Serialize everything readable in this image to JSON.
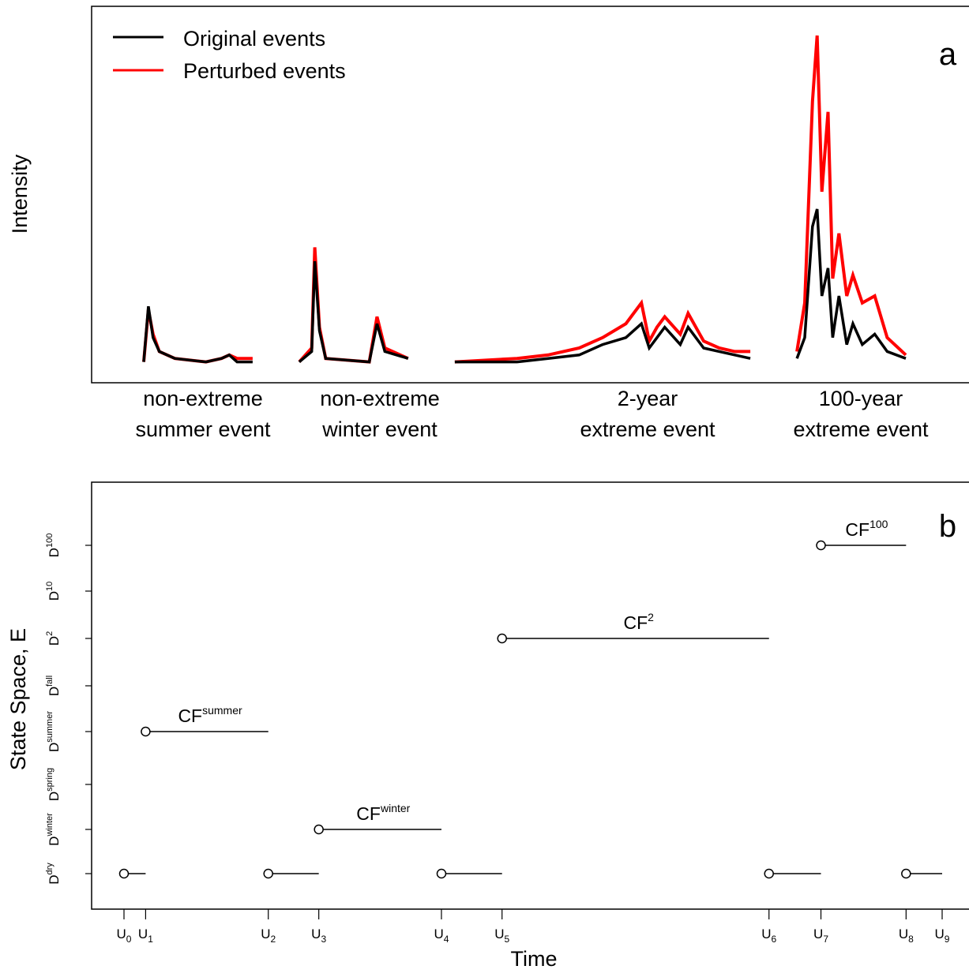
{
  "chart_data": [
    {
      "panel_label": "a",
      "type": "line",
      "ylabel": "Intensity",
      "legend_position": "top-left",
      "colors": {
        "original": "#000000",
        "perturbed": "#ff0000"
      },
      "series": [
        {
          "name": "Original events"
        },
        {
          "name": "Perturbed events"
        }
      ],
      "categories": [
        {
          "line1": "non-extreme",
          "line2": "summer event"
        },
        {
          "line1": "non-extreme",
          "line2": "winter event"
        },
        {
          "line1": "2-year",
          "line2": "extreme event"
        },
        {
          "line1": "100-year",
          "line2": "extreme event"
        }
      ],
      "segments": [
        {
          "x_range": [
            0.0,
            0.7
          ],
          "original": [
            [
              0.0,
              0.01
            ],
            [
              0.03,
              0.17
            ],
            [
              0.06,
              0.08
            ],
            [
              0.1,
              0.04
            ],
            [
              0.2,
              0.02
            ],
            [
              0.4,
              0.01
            ],
            [
              0.5,
              0.02
            ],
            [
              0.55,
              0.03
            ],
            [
              0.6,
              0.01
            ],
            [
              0.7,
              0.01
            ]
          ],
          "perturbed": [
            [
              0.0,
              0.01
            ],
            [
              0.03,
              0.16
            ],
            [
              0.06,
              0.09
            ],
            [
              0.1,
              0.04
            ],
            [
              0.2,
              0.02
            ],
            [
              0.4,
              0.01
            ],
            [
              0.5,
              0.02
            ],
            [
              0.55,
              0.03
            ],
            [
              0.6,
              0.02
            ],
            [
              0.7,
              0.02
            ]
          ]
        },
        {
          "x_range": [
            1.0,
            1.7
          ],
          "original": [
            [
              1.0,
              0.01
            ],
            [
              1.08,
              0.04
            ],
            [
              1.1,
              0.3
            ],
            [
              1.13,
              0.1
            ],
            [
              1.17,
              0.02
            ],
            [
              1.45,
              0.01
            ],
            [
              1.5,
              0.12
            ],
            [
              1.55,
              0.04
            ],
            [
              1.7,
              0.02
            ]
          ],
          "perturbed": [
            [
              1.0,
              0.01
            ],
            [
              1.08,
              0.05
            ],
            [
              1.1,
              0.34
            ],
            [
              1.13,
              0.11
            ],
            [
              1.17,
              0.02
            ],
            [
              1.45,
              0.01
            ],
            [
              1.5,
              0.14
            ],
            [
              1.55,
              0.05
            ],
            [
              1.7,
              0.02
            ]
          ]
        },
        {
          "x_range": [
            2.0,
            3.9
          ],
          "original": [
            [
              2.0,
              0.01
            ],
            [
              2.4,
              0.01
            ],
            [
              2.6,
              0.02
            ],
            [
              2.8,
              0.03
            ],
            [
              2.95,
              0.06
            ],
            [
              3.1,
              0.08
            ],
            [
              3.2,
              0.12
            ],
            [
              3.25,
              0.05
            ],
            [
              3.3,
              0.08
            ],
            [
              3.35,
              0.11
            ],
            [
              3.45,
              0.06
            ],
            [
              3.5,
              0.11
            ],
            [
              3.6,
              0.05
            ],
            [
              3.7,
              0.04
            ],
            [
              3.8,
              0.03
            ],
            [
              3.9,
              0.02
            ]
          ],
          "perturbed": [
            [
              2.0,
              0.01
            ],
            [
              2.4,
              0.02
            ],
            [
              2.6,
              0.03
            ],
            [
              2.8,
              0.05
            ],
            [
              2.95,
              0.08
            ],
            [
              3.1,
              0.12
            ],
            [
              3.2,
              0.18
            ],
            [
              3.25,
              0.07
            ],
            [
              3.3,
              0.11
            ],
            [
              3.35,
              0.14
            ],
            [
              3.45,
              0.09
            ],
            [
              3.5,
              0.15
            ],
            [
              3.6,
              0.07
            ],
            [
              3.7,
              0.05
            ],
            [
              3.8,
              0.04
            ],
            [
              3.9,
              0.04
            ]
          ]
        },
        {
          "x_range": [
            4.2,
            4.9
          ],
          "original": [
            [
              4.2,
              0.02
            ],
            [
              4.25,
              0.08
            ],
            [
              4.3,
              0.4
            ],
            [
              4.33,
              0.45
            ],
            [
              4.36,
              0.2
            ],
            [
              4.4,
              0.28
            ],
            [
              4.43,
              0.08
            ],
            [
              4.47,
              0.2
            ],
            [
              4.52,
              0.06
            ],
            [
              4.56,
              0.12
            ],
            [
              4.62,
              0.06
            ],
            [
              4.7,
              0.09
            ],
            [
              4.78,
              0.04
            ],
            [
              4.9,
              0.02
            ]
          ],
          "perturbed": [
            [
              4.2,
              0.04
            ],
            [
              4.25,
              0.18
            ],
            [
              4.3,
              0.76
            ],
            [
              4.33,
              0.95
            ],
            [
              4.36,
              0.5
            ],
            [
              4.4,
              0.73
            ],
            [
              4.43,
              0.25
            ],
            [
              4.47,
              0.38
            ],
            [
              4.52,
              0.2
            ],
            [
              4.56,
              0.26
            ],
            [
              4.62,
              0.18
            ],
            [
              4.7,
              0.2
            ],
            [
              4.78,
              0.08
            ],
            [
              4.9,
              0.03
            ]
          ]
        }
      ]
    },
    {
      "panel_label": "b",
      "type": "scatter",
      "xlabel": "Time",
      "ylabel": "State Space, E",
      "y_tick_labels": [
        {
          "base": "D",
          "sup": "dry"
        },
        {
          "base": "D",
          "sup": "winter"
        },
        {
          "base": "D",
          "sup": "spring"
        },
        {
          "base": "D",
          "sup": "summer"
        },
        {
          "base": "D",
          "sup": "fall"
        },
        {
          "base": "D",
          "sup": "2"
        },
        {
          "base": "D",
          "sup": "10"
        },
        {
          "base": "D",
          "sup": "100"
        }
      ],
      "x_tick_labels": [
        {
          "base": "U",
          "sub": "0"
        },
        {
          "base": "U",
          "sub": "1"
        },
        {
          "base": "U",
          "sub": "2"
        },
        {
          "base": "U",
          "sub": "3"
        },
        {
          "base": "U",
          "sub": "4"
        },
        {
          "base": "U",
          "sub": "5"
        },
        {
          "base": "U",
          "sub": "6"
        },
        {
          "base": "U",
          "sub": "7"
        },
        {
          "base": "U",
          "sub": "8"
        },
        {
          "base": "U",
          "sub": "9"
        }
      ],
      "x_tick_positions": [
        0.0,
        0.15,
        1.0,
        1.35,
        2.2,
        2.62,
        4.47,
        4.83,
        5.42,
        5.67
      ],
      "state_segments": [
        {
          "start": 0.0,
          "end": 0.15,
          "state": 1,
          "label": null
        },
        {
          "start": 0.15,
          "end": 1.0,
          "state": 4,
          "label": {
            "base": "CF",
            "sup": "summer"
          }
        },
        {
          "start": 1.0,
          "end": 1.35,
          "state": 1,
          "label": null
        },
        {
          "start": 1.35,
          "end": 2.2,
          "state": 2,
          "label": {
            "base": "CF",
            "sup": "winter"
          }
        },
        {
          "start": 2.2,
          "end": 2.62,
          "state": 1,
          "label": null
        },
        {
          "start": 2.62,
          "end": 4.47,
          "state": 6,
          "label": {
            "base": "CF",
            "sup": "2"
          }
        },
        {
          "start": 4.47,
          "end": 4.83,
          "state": 1,
          "label": null
        },
        {
          "start": 4.83,
          "end": 5.42,
          "state": 8,
          "label": {
            "base": "CF",
            "sup": "100"
          }
        },
        {
          "start": 5.42,
          "end": 5.67,
          "state": 1,
          "label": null
        }
      ]
    }
  ]
}
